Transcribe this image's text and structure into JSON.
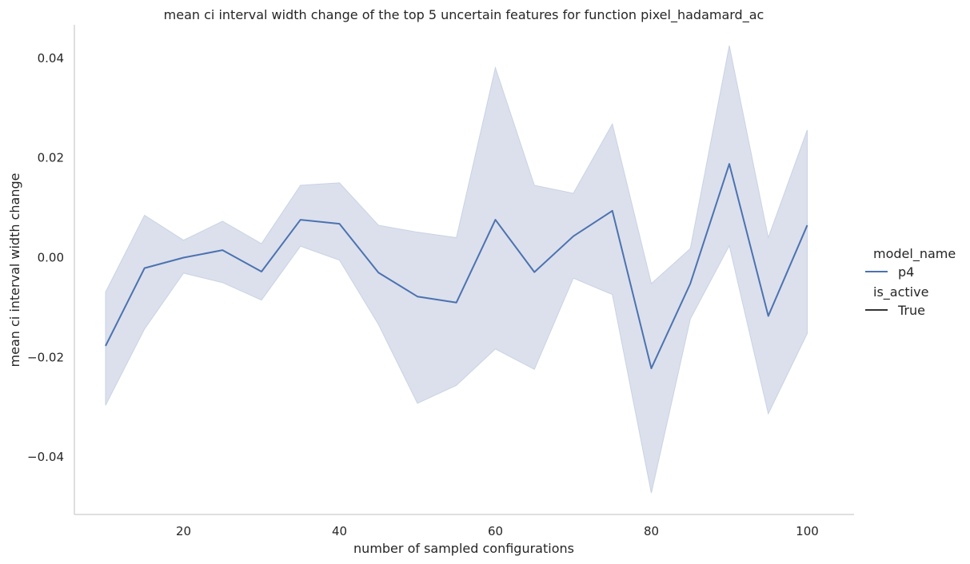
{
  "chart_data": {
    "type": "line",
    "title": "mean ci interval width change of the top 5 uncertain features for function pixel_hadamard_ac",
    "xlabel": "number of sampled configurations",
    "ylabel": "mean ci interval width change",
    "xlim": [
      6,
      106
    ],
    "ylim": [
      -0.0515,
      0.0467
    ],
    "xticks": [
      20,
      40,
      60,
      80,
      100
    ],
    "xtick_labels": [
      "20",
      "40",
      "60",
      "80",
      "100"
    ],
    "yticks": [
      -0.04,
      -0.02,
      0.0,
      0.02,
      0.04
    ],
    "ytick_labels": [
      "−0.04",
      "−0.02",
      "0.00",
      "0.02",
      "0.04"
    ],
    "grid": false,
    "legend_placement": "right",
    "legend": {
      "hue_title": "model_name",
      "hue_entries": [
        {
          "label": "p4",
          "color": "#4c72b0"
        }
      ],
      "style_title": "is_active",
      "style_entries": [
        {
          "label": "True",
          "color": "#333333"
        }
      ]
    },
    "series": [
      {
        "name": "p4",
        "color": "#4c72b0",
        "x": [
          10,
          15,
          20,
          25,
          30,
          35,
          40,
          45,
          50,
          55,
          60,
          65,
          70,
          75,
          80,
          85,
          90,
          95,
          100
        ],
        "values": [
          -0.0177,
          -0.0021,
          0.0,
          0.0015,
          -0.0028,
          0.0076,
          0.0068,
          -0.003,
          -0.0078,
          -0.009,
          0.0076,
          -0.0029,
          0.0043,
          0.0094,
          -0.0222,
          -0.0052,
          0.0188,
          -0.0117,
          0.0065
        ],
        "ci_lower": [
          -0.0296,
          -0.0143,
          -0.0031,
          -0.005,
          -0.0085,
          0.0023,
          -0.0005,
          -0.0134,
          -0.0292,
          -0.0256,
          -0.0183,
          -0.0224,
          -0.0041,
          -0.0074,
          -0.0472,
          -0.0123,
          0.0024,
          -0.0313,
          -0.0152
        ],
        "ci_upper": [
          -0.0069,
          0.0085,
          0.0035,
          0.0073,
          0.0028,
          0.0145,
          0.015,
          0.0065,
          0.0051,
          0.004,
          0.0381,
          0.0145,
          0.0129,
          0.0268,
          -0.0052,
          0.0018,
          0.0425,
          0.004,
          0.0256
        ],
        "band_color": "#dbe0ec"
      }
    ]
  }
}
